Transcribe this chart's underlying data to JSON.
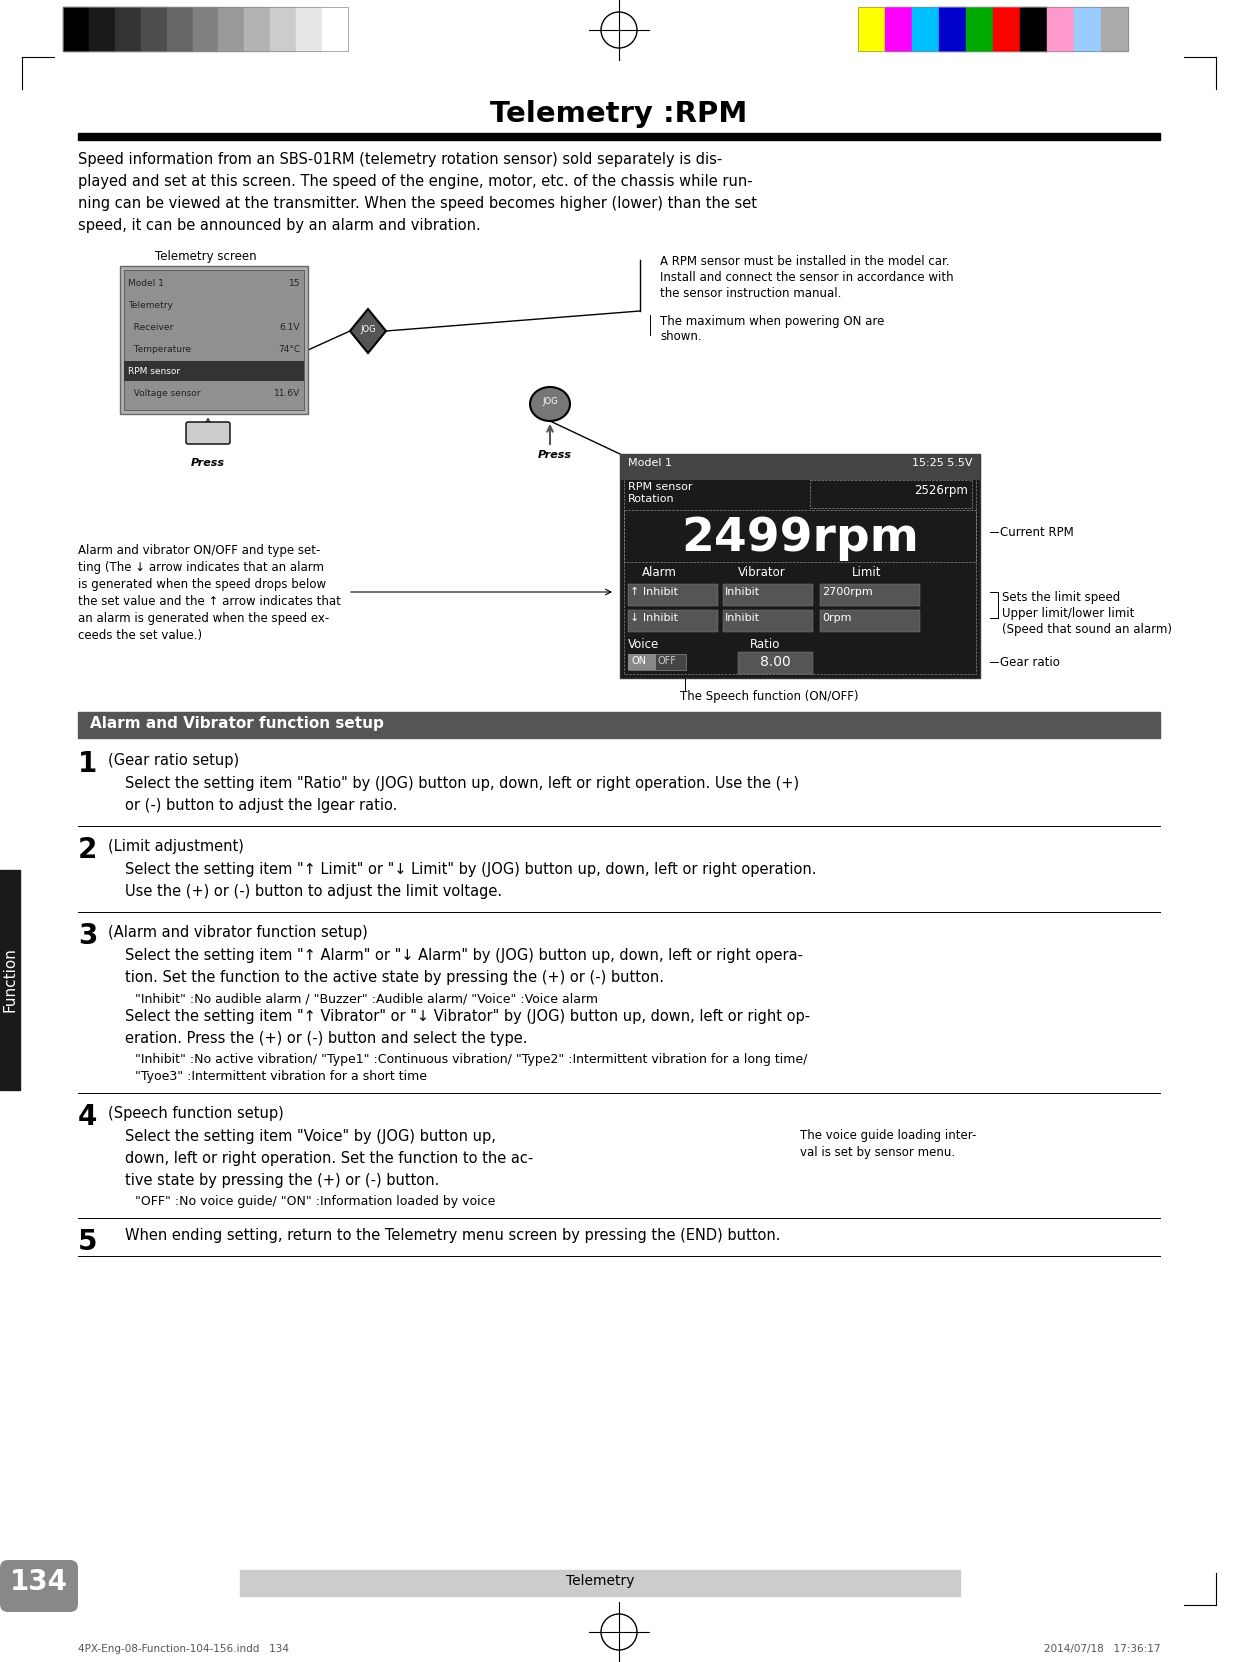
{
  "title": "Telemetry :RPM",
  "bg_color": "#ffffff",
  "intro_text": [
    "Speed information from an SBS-01RM (telemetry rotation sensor) sold separately is dis-",
    "played and set at this screen. The speed of the engine, motor, etc. of the chassis while run-",
    "ning can be viewed at the transmitter. When the speed becomes higher (lower) than the set",
    "speed, it can be announced by an alarm and vibration."
  ],
  "section_header": "Alarm and Vibrator function setup",
  "section_header_bg": "#555555",
  "section_header_color": "#ffffff",
  "footer_text": "Telemetry",
  "footer_bg": "#cccccc",
  "page_number": "134",
  "page_number_bg": "#888888",
  "sidebar_label": "Function",
  "sidebar_bg": "#1a1a1a",
  "bottom_left_text": "4PX-Eng-08-Function-104-156.indd   134",
  "bottom_right_text": "2014/07/18   17:36:17",
  "color_bar_left_colors": [
    "#000000",
    "#1a1a1a",
    "#333333",
    "#4d4d4d",
    "#666666",
    "#808080",
    "#999999",
    "#b3b3b3",
    "#cccccc",
    "#e6e6e6",
    "#ffffff"
  ],
  "color_bar_right_colors": [
    "#ffff00",
    "#ff00ff",
    "#00bfff",
    "#0000cd",
    "#00aa00",
    "#ff0000",
    "#000000",
    "#ff99cc",
    "#99ccff",
    "#aaaaaa"
  ],
  "screen_label": "Telemetry screen",
  "rpm_display": "2499rpm",
  "rpm_small": "2526rpm",
  "limit_values": [
    "2700rpm",
    "0rpm"
  ],
  "ratio_value": "8.00",
  "annotation_current_rpm": "Current RPM",
  "annotation_limit_speed": [
    "Sets the limit speed",
    "Upper limit/lower limit",
    "(Speed that sound an alarm)"
  ],
  "annotation_gear_ratio": "Gear ratio",
  "annotation_speech": "The Speech function (ON/OFF)",
  "annotation_sensor": [
    "A RPM sensor must be installed in the model car.",
    "Install and connect the sensor in accordance with",
    "the sensor instruction manual."
  ],
  "annotation_maxpower": [
    "The maximum when powering ON are",
    "shown."
  ],
  "screen_alarm_text": [
    "Alarm and vibrator ON/OFF and type set-",
    "ting (The ↓ arrow indicates that an alarm",
    "is generated when the speed drops below",
    "the set value and the ↑ arrow indicates that",
    "an alarm is generated when the speed ex-",
    "ceeds the set value.)"
  ],
  "model_text": "Model 1",
  "sensor_text_1": "RPM sensor",
  "sensor_text_2": "Rotation",
  "time_text": "15:25 5.5V",
  "steps": [
    {
      "num": "1",
      "title": "(Gear ratio setup)",
      "body_normal": [
        "Select the setting item \"Ratio\" by (JOG) button up, down, left or right operation. Use the (+)",
        "or (-) button to adjust the lgear ratio."
      ],
      "body_small": []
    },
    {
      "num": "2",
      "title": "(Limit adjustment)",
      "body_normal": [
        "Select the setting item \"↑ Limit\" or \"↓ Limit\" by (JOG) button up, down, left or right operation.",
        "Use the (+) or (-) button to adjust the limit voltage."
      ],
      "body_small": []
    },
    {
      "num": "3",
      "title": "(Alarm and vibrator function setup)",
      "body_normal": [
        "Select the setting item \"↑ Alarm\" or \"↓ Alarm\" by (JOG) button up, down, left or right opera-",
        "tion. Set the function to the active state by pressing the (+) or (-) button."
      ],
      "body_small": [
        "\"Inhibit\" :No audible alarm / \"Buzzer\" :Audible alarm/ \"Voice\" :Voice alarm"
      ],
      "body_normal2": [
        "Select the setting item \"↑ Vibrator\" or \"↓ Vibrator\" by (JOG) button up, down, left or right op-",
        "eration. Press the (+) or (-) button and select the type."
      ],
      "body_small2": [
        "\"Inhibit\" :No active vibration/ \"Type1\" :Continuous vibration/ \"Type2\" :Intermittent vibration for a long time/",
        "\"Tyoe3\" :Intermittent vibration for a short time"
      ]
    },
    {
      "num": "4",
      "title": "(Speech function setup)",
      "body_normal": [
        "Select the setting item \"Voice\" by (JOG) button up,",
        "down, left or right operation. Set the function to the ac-",
        "tive state by pressing the (+) or (-) button."
      ],
      "body_small": [
        "\"OFF\" :No voice guide/ \"ON\" :Information loaded by voice"
      ],
      "note_right": [
        "The voice guide loading inter-",
        "val is set by sensor menu."
      ]
    },
    {
      "num": "5",
      "title": "",
      "body_normal": [
        "When ending setting, return to the Telemetry menu screen by pressing the (END) button."
      ],
      "body_small": []
    }
  ]
}
